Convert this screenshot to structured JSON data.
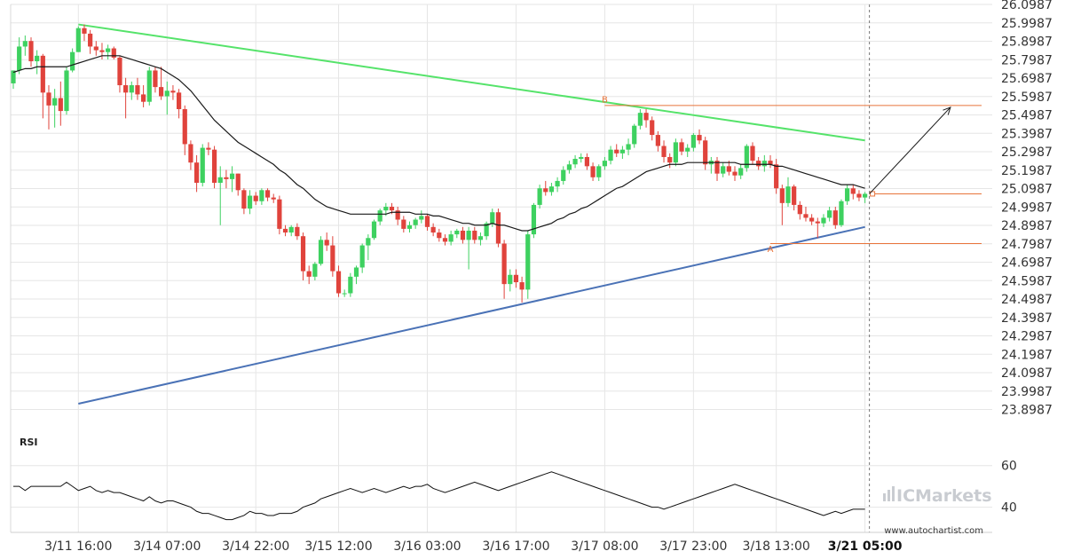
{
  "chart_data": {
    "type": "candlestick",
    "ylim": [
      23.8,
      26.0987
    ],
    "y_ticks": [
      "26.0987",
      "25.9987",
      "25.8987",
      "25.7987",
      "25.6987",
      "25.5987",
      "25.4987",
      "25.3987",
      "25.2987",
      "25.1987",
      "25.0987",
      "24.9987",
      "24.8987",
      "24.7987",
      "24.6987",
      "24.5987",
      "24.4987",
      "24.3987",
      "24.2987",
      "24.1987",
      "24.0987",
      "23.9987",
      "23.8987"
    ],
    "x_ticks": [
      {
        "label": "3/11 16:00",
        "bar": 11
      },
      {
        "label": "3/14 07:00",
        "bar": 26
      },
      {
        "label": "3/14 22:00",
        "bar": 41
      },
      {
        "label": "3/15 12:00",
        "bar": 55
      },
      {
        "label": "3/16 03:00",
        "bar": 70
      },
      {
        "label": "3/16 17:00",
        "bar": 85
      },
      {
        "label": "3/17 08:00",
        "bar": 100
      },
      {
        "label": "3/17 23:00",
        "bar": 115
      },
      {
        "label": "3/18 13:00",
        "bar": 129
      },
      {
        "label": "3/21 05:00",
        "bar": 144,
        "bold": true
      }
    ],
    "bars": [
      {
        "o": 25.67,
        "h": 25.74,
        "l": 25.64,
        "c": 25.74
      },
      {
        "o": 25.74,
        "h": 25.92,
        "l": 25.72,
        "c": 25.87
      },
      {
        "o": 25.87,
        "h": 25.93,
        "l": 25.82,
        "c": 25.9
      },
      {
        "o": 25.9,
        "h": 25.92,
        "l": 25.76,
        "c": 25.79
      },
      {
        "o": 25.79,
        "h": 25.85,
        "l": 25.72,
        "c": 25.82
      },
      {
        "o": 25.82,
        "h": 25.83,
        "l": 25.48,
        "c": 25.62
      },
      {
        "o": 25.62,
        "h": 25.66,
        "l": 25.42,
        "c": 25.55
      },
      {
        "o": 25.55,
        "h": 25.64,
        "l": 25.43,
        "c": 25.59
      },
      {
        "o": 25.59,
        "h": 25.68,
        "l": 25.44,
        "c": 25.52
      },
      {
        "o": 25.52,
        "h": 25.76,
        "l": 25.5,
        "c": 25.74
      },
      {
        "o": 25.74,
        "h": 25.86,
        "l": 25.73,
        "c": 25.84
      },
      {
        "o": 25.84,
        "h": 25.98,
        "l": 25.84,
        "c": 25.97
      },
      {
        "o": 25.97,
        "h": 25.99,
        "l": 25.9,
        "c": 25.94
      },
      {
        "o": 25.94,
        "h": 25.96,
        "l": 25.83,
        "c": 25.87
      },
      {
        "o": 25.87,
        "h": 25.9,
        "l": 25.82,
        "c": 25.85
      },
      {
        "o": 25.85,
        "h": 25.89,
        "l": 25.8,
        "c": 25.84
      },
      {
        "o": 25.84,
        "h": 25.88,
        "l": 25.8,
        "c": 25.86
      },
      {
        "o": 25.86,
        "h": 25.87,
        "l": 25.8,
        "c": 25.81
      },
      {
        "o": 25.81,
        "h": 25.82,
        "l": 25.62,
        "c": 25.66
      },
      {
        "o": 25.66,
        "h": 25.7,
        "l": 25.48,
        "c": 25.62
      },
      {
        "o": 25.62,
        "h": 25.68,
        "l": 25.58,
        "c": 25.66
      },
      {
        "o": 25.66,
        "h": 25.7,
        "l": 25.58,
        "c": 25.61
      },
      {
        "o": 25.61,
        "h": 25.66,
        "l": 25.54,
        "c": 25.57
      },
      {
        "o": 25.57,
        "h": 25.76,
        "l": 25.55,
        "c": 25.74
      },
      {
        "o": 25.74,
        "h": 25.76,
        "l": 25.62,
        "c": 25.65
      },
      {
        "o": 25.65,
        "h": 25.76,
        "l": 25.58,
        "c": 25.6
      },
      {
        "o": 25.6,
        "h": 25.68,
        "l": 25.5,
        "c": 25.63
      },
      {
        "o": 25.63,
        "h": 25.66,
        "l": 25.58,
        "c": 25.62
      },
      {
        "o": 25.62,
        "h": 25.64,
        "l": 25.48,
        "c": 25.53
      },
      {
        "o": 25.53,
        "h": 25.55,
        "l": 25.28,
        "c": 25.34
      },
      {
        "o": 25.34,
        "h": 25.36,
        "l": 25.2,
        "c": 25.24
      },
      {
        "o": 25.24,
        "h": 25.28,
        "l": 25.08,
        "c": 25.13
      },
      {
        "o": 25.13,
        "h": 25.34,
        "l": 25.11,
        "c": 25.32
      },
      {
        "o": 25.32,
        "h": 25.35,
        "l": 25.28,
        "c": 25.31
      },
      {
        "o": 25.31,
        "h": 25.33,
        "l": 25.1,
        "c": 25.13
      },
      {
        "o": 25.13,
        "h": 25.22,
        "l": 24.9,
        "c": 25.16
      },
      {
        "o": 25.16,
        "h": 25.2,
        "l": 25.1,
        "c": 25.15
      },
      {
        "o": 25.15,
        "h": 25.22,
        "l": 25.08,
        "c": 25.18
      },
      {
        "o": 25.18,
        "h": 25.18,
        "l": 25.06,
        "c": 25.09
      },
      {
        "o": 25.09,
        "h": 25.1,
        "l": 24.96,
        "c": 24.99
      },
      {
        "o": 24.99,
        "h": 25.09,
        "l": 24.96,
        "c": 25.06
      },
      {
        "o": 25.06,
        "h": 25.08,
        "l": 25.01,
        "c": 25.03
      },
      {
        "o": 25.03,
        "h": 25.1,
        "l": 25.01,
        "c": 25.09
      },
      {
        "o": 25.09,
        "h": 25.1,
        "l": 25.03,
        "c": 25.05
      },
      {
        "o": 25.05,
        "h": 25.07,
        "l": 25.02,
        "c": 25.04
      },
      {
        "o": 25.04,
        "h": 25.06,
        "l": 24.85,
        "c": 24.88
      },
      {
        "o": 24.88,
        "h": 24.9,
        "l": 24.84,
        "c": 24.86
      },
      {
        "o": 24.86,
        "h": 24.9,
        "l": 24.84,
        "c": 24.89
      },
      {
        "o": 24.89,
        "h": 24.91,
        "l": 24.82,
        "c": 24.84
      },
      {
        "o": 24.84,
        "h": 24.86,
        "l": 24.6,
        "c": 24.65
      },
      {
        "o": 24.65,
        "h": 24.68,
        "l": 24.58,
        "c": 24.62
      },
      {
        "o": 24.62,
        "h": 24.7,
        "l": 24.6,
        "c": 24.69
      },
      {
        "o": 24.69,
        "h": 24.84,
        "l": 24.68,
        "c": 24.82
      },
      {
        "o": 24.82,
        "h": 24.86,
        "l": 24.76,
        "c": 24.79
      },
      {
        "o": 24.79,
        "h": 24.84,
        "l": 24.62,
        "c": 24.65
      },
      {
        "o": 24.65,
        "h": 24.68,
        "l": 24.51,
        "c": 24.53
      },
      {
        "o": 24.53,
        "h": 24.55,
        "l": 24.51,
        "c": 24.53
      },
      {
        "o": 24.53,
        "h": 24.64,
        "l": 24.51,
        "c": 24.62
      },
      {
        "o": 24.62,
        "h": 24.68,
        "l": 24.58,
        "c": 24.67
      },
      {
        "o": 24.67,
        "h": 24.8,
        "l": 24.64,
        "c": 24.79
      },
      {
        "o": 24.79,
        "h": 24.85,
        "l": 24.71,
        "c": 24.83
      },
      {
        "o": 24.83,
        "h": 24.93,
        "l": 24.82,
        "c": 24.92
      },
      {
        "o": 24.92,
        "h": 24.99,
        "l": 24.9,
        "c": 24.98
      },
      {
        "o": 24.98,
        "h": 25.02,
        "l": 24.95,
        "c": 25.0
      },
      {
        "o": 25.0,
        "h": 25.02,
        "l": 24.96,
        "c": 24.98
      },
      {
        "o": 24.98,
        "h": 25.0,
        "l": 24.9,
        "c": 24.93
      },
      {
        "o": 24.93,
        "h": 24.95,
        "l": 24.86,
        "c": 24.88
      },
      {
        "o": 24.88,
        "h": 24.92,
        "l": 24.86,
        "c": 24.9
      },
      {
        "o": 24.9,
        "h": 24.94,
        "l": 24.88,
        "c": 24.93
      },
      {
        "o": 24.93,
        "h": 24.98,
        "l": 24.91,
        "c": 24.95
      },
      {
        "o": 24.95,
        "h": 24.96,
        "l": 24.87,
        "c": 24.89
      },
      {
        "o": 24.89,
        "h": 24.91,
        "l": 24.84,
        "c": 24.86
      },
      {
        "o": 24.86,
        "h": 24.88,
        "l": 24.81,
        "c": 24.83
      },
      {
        "o": 24.83,
        "h": 24.85,
        "l": 24.79,
        "c": 24.81
      },
      {
        "o": 24.81,
        "h": 24.87,
        "l": 24.79,
        "c": 24.85
      },
      {
        "o": 24.85,
        "h": 24.88,
        "l": 24.83,
        "c": 24.87
      },
      {
        "o": 24.87,
        "h": 24.89,
        "l": 24.8,
        "c": 24.82
      },
      {
        "o": 24.82,
        "h": 24.89,
        "l": 24.66,
        "c": 24.87
      },
      {
        "o": 24.87,
        "h": 24.89,
        "l": 24.8,
        "c": 24.82
      },
      {
        "o": 24.82,
        "h": 24.86,
        "l": 24.79,
        "c": 24.84
      },
      {
        "o": 24.84,
        "h": 24.92,
        "l": 24.82,
        "c": 24.91
      },
      {
        "o": 24.91,
        "h": 24.99,
        "l": 24.89,
        "c": 24.97
      },
      {
        "o": 24.97,
        "h": 24.99,
        "l": 24.78,
        "c": 24.8
      },
      {
        "o": 24.8,
        "h": 24.82,
        "l": 24.5,
        "c": 24.58
      },
      {
        "o": 24.58,
        "h": 24.66,
        "l": 24.54,
        "c": 24.63
      },
      {
        "o": 24.63,
        "h": 24.66,
        "l": 24.56,
        "c": 24.59
      },
      {
        "o": 24.59,
        "h": 24.62,
        "l": 24.48,
        "c": 24.55
      },
      {
        "o": 24.55,
        "h": 24.87,
        "l": 24.5,
        "c": 24.85
      },
      {
        "o": 24.85,
        "h": 25.02,
        "l": 24.83,
        "c": 25.01
      },
      {
        "o": 25.01,
        "h": 25.12,
        "l": 24.99,
        "c": 25.1
      },
      {
        "o": 25.1,
        "h": 25.14,
        "l": 25.06,
        "c": 25.08
      },
      {
        "o": 25.08,
        "h": 25.13,
        "l": 25.06,
        "c": 25.11
      },
      {
        "o": 25.11,
        "h": 25.16,
        "l": 25.08,
        "c": 25.14
      },
      {
        "o": 25.14,
        "h": 25.22,
        "l": 25.12,
        "c": 25.2
      },
      {
        "o": 25.2,
        "h": 25.25,
        "l": 25.18,
        "c": 25.23
      },
      {
        "o": 25.23,
        "h": 25.28,
        "l": 25.21,
        "c": 25.26
      },
      {
        "o": 25.26,
        "h": 25.29,
        "l": 25.24,
        "c": 25.27
      },
      {
        "o": 25.27,
        "h": 25.29,
        "l": 25.2,
        "c": 25.22
      },
      {
        "o": 25.22,
        "h": 25.24,
        "l": 25.14,
        "c": 25.16
      },
      {
        "o": 25.16,
        "h": 25.23,
        "l": 25.14,
        "c": 25.22
      },
      {
        "o": 25.22,
        "h": 25.27,
        "l": 25.2,
        "c": 25.25
      },
      {
        "o": 25.25,
        "h": 25.33,
        "l": 25.23,
        "c": 25.31
      },
      {
        "o": 25.31,
        "h": 25.34,
        "l": 25.27,
        "c": 25.29
      },
      {
        "o": 25.29,
        "h": 25.33,
        "l": 25.26,
        "c": 25.31
      },
      {
        "o": 25.31,
        "h": 25.37,
        "l": 25.28,
        "c": 25.34
      },
      {
        "o": 25.34,
        "h": 25.45,
        "l": 25.32,
        "c": 25.44
      },
      {
        "o": 25.44,
        "h": 25.53,
        "l": 25.42,
        "c": 25.51
      },
      {
        "o": 25.51,
        "h": 25.53,
        "l": 25.43,
        "c": 25.47
      },
      {
        "o": 25.47,
        "h": 25.49,
        "l": 25.36,
        "c": 25.39
      },
      {
        "o": 25.39,
        "h": 25.41,
        "l": 25.3,
        "c": 25.33
      },
      {
        "o": 25.33,
        "h": 25.36,
        "l": 25.24,
        "c": 25.27
      },
      {
        "o": 25.27,
        "h": 25.29,
        "l": 25.21,
        "c": 25.24
      },
      {
        "o": 25.24,
        "h": 25.37,
        "l": 25.22,
        "c": 25.35
      },
      {
        "o": 25.35,
        "h": 25.37,
        "l": 25.28,
        "c": 25.3
      },
      {
        "o": 25.3,
        "h": 25.34,
        "l": 25.27,
        "c": 25.32
      },
      {
        "o": 25.32,
        "h": 25.4,
        "l": 25.3,
        "c": 25.39
      },
      {
        "o": 25.39,
        "h": 25.42,
        "l": 25.34,
        "c": 25.36
      },
      {
        "o": 25.36,
        "h": 25.38,
        "l": 25.2,
        "c": 25.23
      },
      {
        "o": 25.23,
        "h": 25.27,
        "l": 25.18,
        "c": 25.25
      },
      {
        "o": 25.25,
        "h": 25.27,
        "l": 25.14,
        "c": 25.18
      },
      {
        "o": 25.18,
        "h": 25.24,
        "l": 25.16,
        "c": 25.22
      },
      {
        "o": 25.22,
        "h": 25.25,
        "l": 25.17,
        "c": 25.19
      },
      {
        "o": 25.19,
        "h": 25.22,
        "l": 25.14,
        "c": 25.17
      },
      {
        "o": 25.17,
        "h": 25.23,
        "l": 25.15,
        "c": 25.21
      },
      {
        "o": 25.21,
        "h": 25.34,
        "l": 25.19,
        "c": 25.33
      },
      {
        "o": 25.33,
        "h": 25.35,
        "l": 25.23,
        "c": 25.25
      },
      {
        "o": 25.25,
        "h": 25.27,
        "l": 25.2,
        "c": 25.22
      },
      {
        "o": 25.22,
        "h": 25.28,
        "l": 25.19,
        "c": 25.25
      },
      {
        "o": 25.25,
        "h": 25.28,
        "l": 25.21,
        "c": 25.23
      },
      {
        "o": 25.23,
        "h": 25.26,
        "l": 25.07,
        "c": 25.1
      },
      {
        "o": 25.1,
        "h": 25.12,
        "l": 24.9,
        "c": 25.02
      },
      {
        "o": 25.02,
        "h": 25.16,
        "l": 25.0,
        "c": 25.11
      },
      {
        "o": 25.11,
        "h": 25.12,
        "l": 24.98,
        "c": 25.01
      },
      {
        "o": 25.01,
        "h": 25.03,
        "l": 24.93,
        "c": 24.96
      },
      {
        "o": 24.96,
        "h": 25.0,
        "l": 24.92,
        "c": 24.94
      },
      {
        "o": 24.94,
        "h": 24.96,
        "l": 24.9,
        "c": 24.92
      },
      {
        "o": 24.92,
        "h": 24.94,
        "l": 24.83,
        "c": 24.91
      },
      {
        "o": 24.91,
        "h": 24.96,
        "l": 24.89,
        "c": 24.94
      },
      {
        "o": 24.94,
        "h": 25.0,
        "l": 24.92,
        "c": 24.98
      },
      {
        "o": 24.98,
        "h": 25.0,
        "l": 24.88,
        "c": 24.9
      },
      {
        "o": 24.9,
        "h": 25.04,
        "l": 24.89,
        "c": 25.03
      },
      {
        "o": 25.03,
        "h": 25.12,
        "l": 25.01,
        "c": 25.1
      },
      {
        "o": 25.1,
        "h": 25.12,
        "l": 25.04,
        "c": 25.07
      },
      {
        "o": 25.07,
        "h": 25.09,
        "l": 25.03,
        "c": 25.05
      },
      {
        "o": 25.05,
        "h": 25.08,
        "l": 25.02,
        "c": 25.07
      }
    ],
    "ma": [
      25.73,
      25.74,
      25.75,
      25.75,
      25.76,
      25.76,
      25.76,
      25.76,
      25.76,
      25.76,
      25.77,
      25.78,
      25.79,
      25.8,
      25.81,
      25.82,
      25.82,
      25.82,
      25.82,
      25.81,
      25.8,
      25.79,
      25.78,
      25.77,
      25.76,
      25.75,
      25.73,
      25.71,
      25.69,
      25.66,
      25.63,
      25.59,
      25.55,
      25.51,
      25.47,
      25.44,
      25.41,
      25.38,
      25.35,
      25.33,
      25.31,
      25.29,
      25.27,
      25.25,
      25.23,
      25.2,
      25.18,
      25.15,
      25.12,
      25.1,
      25.07,
      25.04,
      25.02,
      25.0,
      24.99,
      24.98,
      24.97,
      24.96,
      24.96,
      24.96,
      24.96,
      24.96,
      24.96,
      24.96,
      24.97,
      24.97,
      24.97,
      24.97,
      24.96,
      24.96,
      24.96,
      24.95,
      24.95,
      24.94,
      24.93,
      24.92,
      24.91,
      24.91,
      24.9,
      24.9,
      24.9,
      24.91,
      24.9,
      24.9,
      24.89,
      24.88,
      24.87,
      24.87,
      24.88,
      24.89,
      24.9,
      24.91,
      24.93,
      24.94,
      24.96,
      24.97,
      24.99,
      25.0,
      25.02,
      25.04,
      25.06,
      25.08,
      25.1,
      25.11,
      25.13,
      25.15,
      25.17,
      25.19,
      25.2,
      25.21,
      25.22,
      25.23,
      25.23,
      25.23,
      25.24,
      25.24,
      25.24,
      25.24,
      25.24,
      25.24,
      25.24,
      25.24,
      25.24,
      25.23,
      25.23,
      25.23,
      25.23,
      25.23,
      25.23,
      25.22,
      25.22,
      25.21,
      25.2,
      25.19,
      25.18,
      25.17,
      25.16,
      25.15,
      25.14,
      25.13,
      25.12,
      25.12,
      25.12,
      25.11,
      25.1
    ],
    "rsi": [
      50,
      50,
      48,
      50,
      50,
      50,
      50,
      50,
      50,
      52,
      50,
      48,
      49,
      50,
      48,
      47,
      48,
      47,
      47,
      46,
      45,
      44,
      43,
      45,
      43,
      42,
      43,
      43,
      42,
      41,
      40,
      38,
      37,
      37,
      36,
      35,
      34,
      34,
      35,
      36,
      38,
      37,
      37,
      36,
      36,
      37,
      37,
      37,
      38,
      40,
      41,
      42,
      44,
      45,
      46,
      47,
      48,
      49,
      48,
      47,
      48,
      49,
      48,
      47,
      48,
      49,
      50,
      49,
      50,
      50,
      51,
      49,
      48,
      47,
      48,
      49,
      50,
      51,
      52,
      51,
      50,
      49,
      48,
      49,
      50,
      51,
      52,
      53,
      54,
      55,
      56,
      57,
      56,
      55,
      54,
      53,
      52,
      51,
      50,
      49,
      48,
      47,
      46,
      45,
      44,
      43,
      42,
      41,
      40,
      40,
      39,
      40,
      41,
      42,
      43,
      44,
      45,
      46,
      47,
      48,
      49,
      50,
      51,
      50,
      49,
      48,
      47,
      46,
      45,
      44,
      43,
      42,
      41,
      40,
      39,
      38,
      37,
      36,
      37,
      38,
      37,
      38,
      39,
      39,
      39
    ],
    "rsi_ticks": [
      "60",
      "40"
    ],
    "rsi_ylim": [
      30,
      62
    ],
    "resistance_line": {
      "from": {
        "bar": 11,
        "price": 25.99
      },
      "to": {
        "bar": 144,
        "price": 25.36
      }
    },
    "support_line": {
      "from": {
        "bar": 11,
        "price": 23.93
      },
      "to": {
        "bar": 144,
        "price": 24.89
      }
    },
    "level_b": {
      "price": 25.55,
      "from_bar": 100
    },
    "level_a": {
      "price": 24.8,
      "from_bar": 128
    },
    "current_price_level": 25.07,
    "projection": {
      "from": {
        "bar": 144,
        "price": 25.07
      },
      "to": {
        "bar": 158,
        "price": 25.54
      }
    },
    "point_labels": [
      {
        "text": "B",
        "bar": 100,
        "price": 25.565
      },
      {
        "text": "A",
        "bar": 128,
        "price": 24.755
      }
    ],
    "rsi_label": "RSI",
    "colors": {
      "up": "#3ed160",
      "down": "#e0433c",
      "ma": "#1a1a1a",
      "resistance": "#55e36a",
      "support": "#4a72b6",
      "level": "#e8743b",
      "arrow": "#1a1a1a",
      "grid": "#e6e6e6"
    }
  },
  "watermark": {
    "brand_prefix": "IC",
    "brand_name": "Markets",
    "site": "www.autochartist.com"
  }
}
